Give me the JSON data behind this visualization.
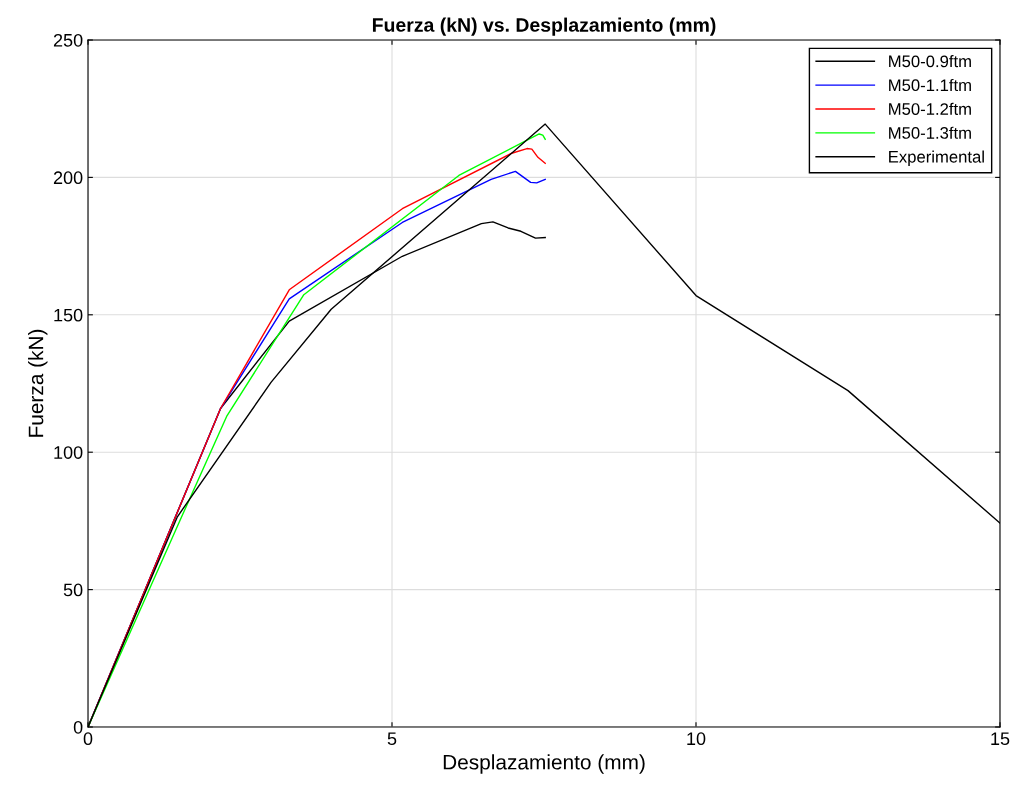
{
  "chart_data": {
    "type": "line",
    "title": "Fuerza (kN) vs. Desplazamiento (mm)",
    "xlabel": "Desplazamiento (mm)",
    "ylabel": "Fuerza (kN)",
    "xlim": [
      0,
      15
    ],
    "xticks": [
      0,
      5,
      10,
      15
    ],
    "ylim": [
      0,
      250
    ],
    "yticks": [
      0,
      50,
      100,
      150,
      200,
      250
    ],
    "grid": true,
    "legend": "top right",
    "marker": "none",
    "line_style": "solid",
    "series": [
      {
        "name": "M50-0.9ftm",
        "color": "#000000",
        "x": [
          0,
          2.18,
          3.31,
          5.17,
          6.47,
          6.66,
          6.91,
          7.12,
          7.36,
          7.52
        ],
        "values": [
          0,
          115.9,
          147.7,
          171.3,
          183.2,
          183.8,
          181.6,
          180.4,
          177.9,
          178.1
        ]
      },
      {
        "name": "M50-1.1ftm",
        "color": "#0000ff",
        "x": [
          0,
          2.18,
          3.31,
          5.17,
          6.63,
          7.03,
          7.28,
          7.38,
          7.52
        ],
        "values": [
          0,
          115.9,
          155.8,
          183.6,
          199.3,
          202.2,
          198.2,
          198,
          199.3
        ]
      },
      {
        "name": "M50-1.2ftm",
        "color": "#ff0000",
        "x": [
          0,
          2.18,
          3.31,
          5.17,
          6.97,
          7.22,
          7.3,
          7.4,
          7.52
        ],
        "values": [
          0,
          115.9,
          159.1,
          188.6,
          208.8,
          210.5,
          210.3,
          207.3,
          205.1
        ]
      },
      {
        "name": "M50-1.3ftm",
        "color": "#00ff00",
        "x": [
          0,
          1.54,
          2.28,
          3.55,
          6.1,
          7.42,
          7.48,
          7.52
        ],
        "values": [
          0,
          76.5,
          113,
          157.3,
          200.7,
          215.8,
          215.4,
          213.9
        ]
      },
      {
        "name": "Experimental",
        "color": "#000000",
        "x": [
          0,
          1.47,
          3.01,
          4.0,
          7.52,
          10,
          12.5,
          15
        ],
        "values": [
          0,
          76.5,
          125.4,
          152,
          219.4,
          157,
          122.4,
          74.2
        ]
      }
    ]
  }
}
